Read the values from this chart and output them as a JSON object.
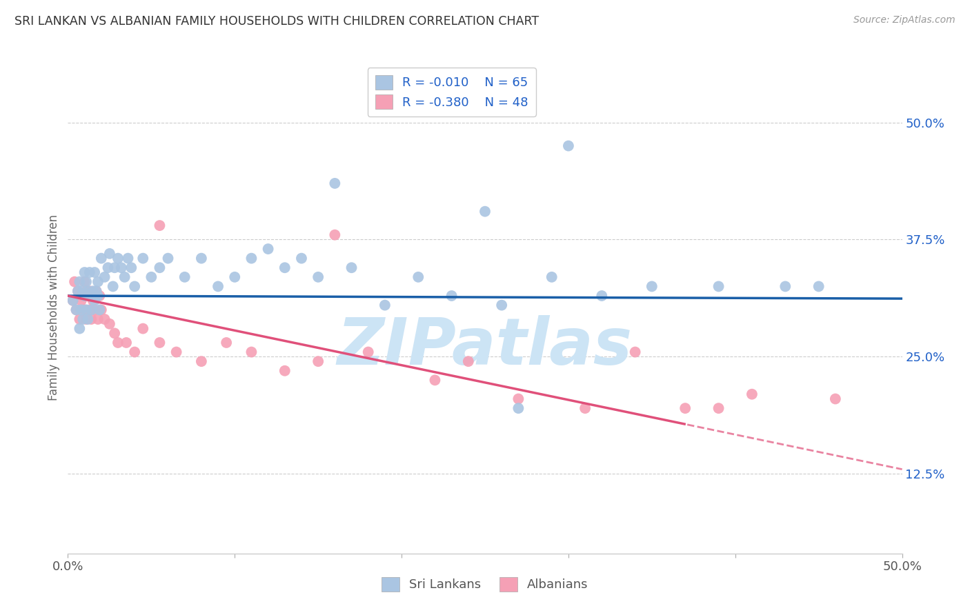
{
  "title": "SRI LANKAN VS ALBANIAN FAMILY HOUSEHOLDS WITH CHILDREN CORRELATION CHART",
  "source": "Source: ZipAtlas.com",
  "ylabel": "Family Households with Children",
  "sri_lankan_R": -0.01,
  "sri_lankan_N": 65,
  "albanian_R": -0.38,
  "albanian_N": 48,
  "sri_lankan_color": "#aac5e2",
  "albanian_color": "#f5a0b5",
  "sri_lankan_line_color": "#1a5fa8",
  "albanian_line_color": "#e0507a",
  "legend_color": "#2060c8",
  "background_color": "#ffffff",
  "grid_color": "#cccccc",
  "title_color": "#333333",
  "right_axis_color": "#2060c8",
  "xlim": [
    0.0,
    0.5
  ],
  "ylim": [
    0.04,
    0.565
  ],
  "yticks": [
    0.125,
    0.25,
    0.375,
    0.5
  ],
  "ytick_labels": [
    "12.5%",
    "25.0%",
    "37.5%",
    "50.0%"
  ],
  "sri_line_y0": 0.315,
  "sri_line_y1": 0.312,
  "alb_line_y0": 0.315,
  "alb_line_y1": 0.178,
  "alb_dash_split": 0.37,
  "watermark_text": "ZIPatlas",
  "watermark_color": "#cce4f5",
  "sri_lankans_x": [
    0.003,
    0.005,
    0.006,
    0.007,
    0.007,
    0.008,
    0.009,
    0.009,
    0.01,
    0.01,
    0.011,
    0.011,
    0.012,
    0.012,
    0.013,
    0.013,
    0.014,
    0.015,
    0.015,
    0.016,
    0.016,
    0.017,
    0.018,
    0.018,
    0.019,
    0.02,
    0.022,
    0.024,
    0.025,
    0.027,
    0.028,
    0.03,
    0.032,
    0.034,
    0.036,
    0.038,
    0.04,
    0.045,
    0.05,
    0.055,
    0.06,
    0.07,
    0.08,
    0.09,
    0.1,
    0.11,
    0.12,
    0.13,
    0.14,
    0.15,
    0.17,
    0.19,
    0.21,
    0.23,
    0.26,
    0.29,
    0.32,
    0.35,
    0.39,
    0.43,
    0.16,
    0.25,
    0.3,
    0.45,
    0.27
  ],
  "sri_lankans_y": [
    0.31,
    0.3,
    0.32,
    0.28,
    0.33,
    0.3,
    0.32,
    0.29,
    0.315,
    0.34,
    0.3,
    0.33,
    0.29,
    0.32,
    0.315,
    0.34,
    0.3,
    0.32,
    0.315,
    0.31,
    0.34,
    0.32,
    0.315,
    0.33,
    0.3,
    0.355,
    0.335,
    0.345,
    0.36,
    0.325,
    0.345,
    0.355,
    0.345,
    0.335,
    0.355,
    0.345,
    0.325,
    0.355,
    0.335,
    0.345,
    0.355,
    0.335,
    0.355,
    0.325,
    0.335,
    0.355,
    0.365,
    0.345,
    0.355,
    0.335,
    0.345,
    0.305,
    0.335,
    0.315,
    0.305,
    0.335,
    0.315,
    0.325,
    0.325,
    0.325,
    0.435,
    0.405,
    0.475,
    0.325,
    0.195
  ],
  "albanians_x": [
    0.003,
    0.004,
    0.005,
    0.006,
    0.007,
    0.008,
    0.009,
    0.01,
    0.01,
    0.011,
    0.011,
    0.012,
    0.013,
    0.013,
    0.014,
    0.015,
    0.015,
    0.016,
    0.017,
    0.018,
    0.019,
    0.02,
    0.022,
    0.025,
    0.028,
    0.03,
    0.035,
    0.04,
    0.045,
    0.055,
    0.065,
    0.08,
    0.095,
    0.11,
    0.13,
    0.15,
    0.18,
    0.22,
    0.27,
    0.31,
    0.37,
    0.41,
    0.46,
    0.055,
    0.16,
    0.24,
    0.34,
    0.39
  ],
  "albanians_y": [
    0.31,
    0.33,
    0.3,
    0.32,
    0.29,
    0.31,
    0.315,
    0.33,
    0.3,
    0.32,
    0.29,
    0.315,
    0.3,
    0.32,
    0.29,
    0.31,
    0.315,
    0.3,
    0.32,
    0.29,
    0.315,
    0.3,
    0.29,
    0.285,
    0.275,
    0.265,
    0.265,
    0.255,
    0.28,
    0.265,
    0.255,
    0.245,
    0.265,
    0.255,
    0.235,
    0.245,
    0.255,
    0.225,
    0.205,
    0.195,
    0.195,
    0.21,
    0.205,
    0.39,
    0.38,
    0.245,
    0.255,
    0.195
  ]
}
